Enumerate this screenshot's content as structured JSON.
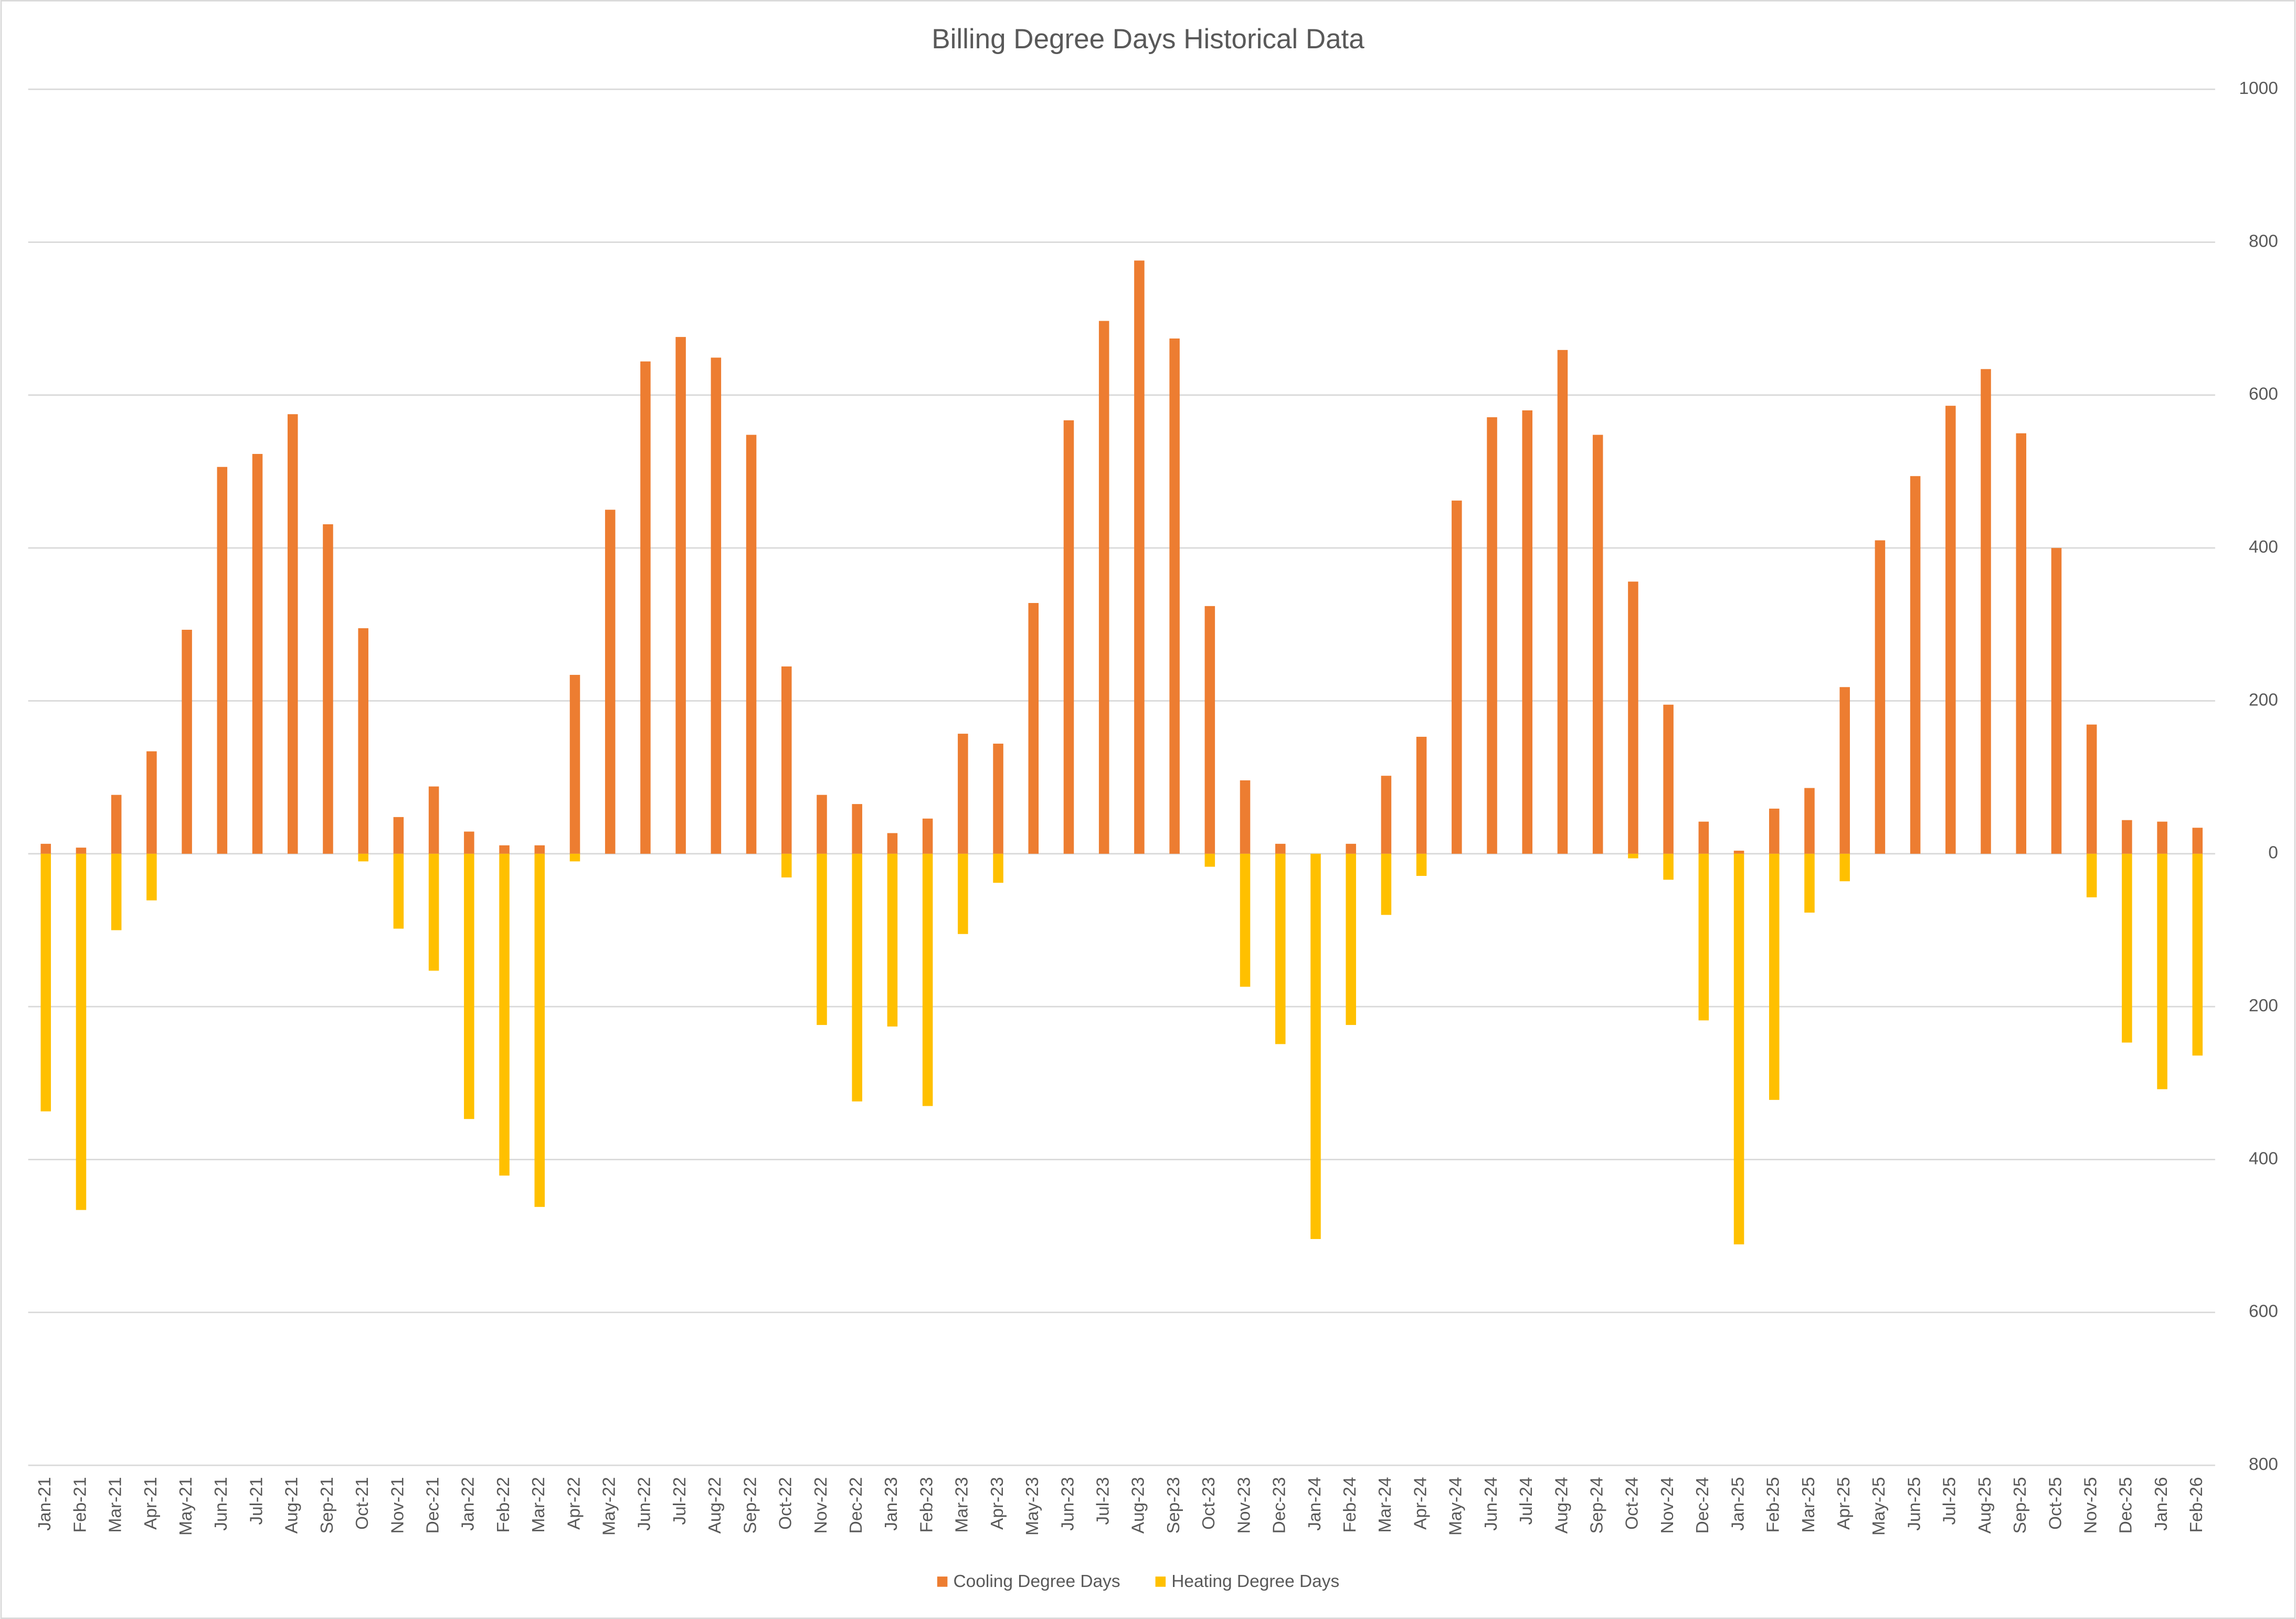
{
  "chart_data": {
    "type": "bar",
    "title": "Billing Degree Days Historical Data",
    "categories": [
      "Jan-21",
      "Feb-21",
      "Mar-21",
      "Apr-21",
      "May-21",
      "Jun-21",
      "Jul-21",
      "Aug-21",
      "Sep-21",
      "Oct-21",
      "Nov-21",
      "Dec-21",
      "Jan-22",
      "Feb-22",
      "Mar-22",
      "Apr-22",
      "May-22",
      "Jun-22",
      "Jul-22",
      "Aug-22",
      "Sep-22",
      "Oct-22",
      "Nov-22",
      "Dec-22",
      "Jan-23",
      "Feb-23",
      "Mar-23",
      "Apr-23",
      "May-23",
      "Jun-23",
      "Jul-23",
      "Aug-23",
      "Sep-23",
      "Oct-23",
      "Nov-23",
      "Dec-23",
      "Jan-24",
      "Feb-24",
      "Mar-24",
      "Apr-24",
      "May-24",
      "Jun-24",
      "Jul-24",
      "Aug-24",
      "Sep-24",
      "Oct-24",
      "Nov-24",
      "Dec-24",
      "Jan-25",
      "Feb-25",
      "Mar-25",
      "Apr-25",
      "May-25",
      "Jun-25",
      "Jul-25",
      "Aug-25",
      "Sep-25",
      "Oct-25",
      "Nov-25",
      "Dec-25",
      "Jan-26",
      "Feb-26"
    ],
    "series": [
      {
        "name": "Cooling Degree Days",
        "color": "#ed7d31",
        "values": [
          13,
          8,
          77,
          134,
          293,
          506,
          523,
          575,
          431,
          295,
          48,
          88,
          29,
          11,
          11,
          234,
          450,
          644,
          676,
          649,
          548,
          245,
          77,
          65,
          27,
          46,
          157,
          144,
          328,
          567,
          697,
          776,
          674,
          324,
          96,
          13,
          0,
          13,
          102,
          153,
          462,
          571,
          580,
          659,
          548,
          356,
          195,
          42,
          4,
          59,
          86,
          218,
          410,
          494,
          586,
          634,
          550,
          400,
          169,
          44,
          42,
          34
        ]
      },
      {
        "name": "Heating Degree Days",
        "color": "#ffc000",
        "values": [
          -337,
          -466,
          -100,
          -61,
          0,
          0,
          0,
          0,
          0,
          -10,
          -98,
          -153,
          -347,
          -421,
          -462,
          -10,
          0,
          0,
          0,
          0,
          0,
          -31,
          -224,
          -324,
          -226,
          -330,
          -105,
          -38,
          0,
          0,
          0,
          0,
          0,
          -17,
          -174,
          -249,
          -504,
          -224,
          -80,
          -29,
          0,
          0,
          0,
          0,
          0,
          -6,
          -34,
          -218,
          -511,
          -322,
          -77,
          -36,
          0,
          0,
          0,
          0,
          0,
          0,
          -57,
          -247,
          -308,
          -264
        ]
      }
    ],
    "ylim": [
      -800,
      1000
    ],
    "yticks": [
      {
        "value": -800,
        "label": "800"
      },
      {
        "value": -600,
        "label": "600"
      },
      {
        "value": -400,
        "label": "400"
      },
      {
        "value": -200,
        "label": "200"
      },
      0,
      200,
      400,
      600,
      800,
      1000
    ],
    "grid": true,
    "legend": "bottom"
  }
}
